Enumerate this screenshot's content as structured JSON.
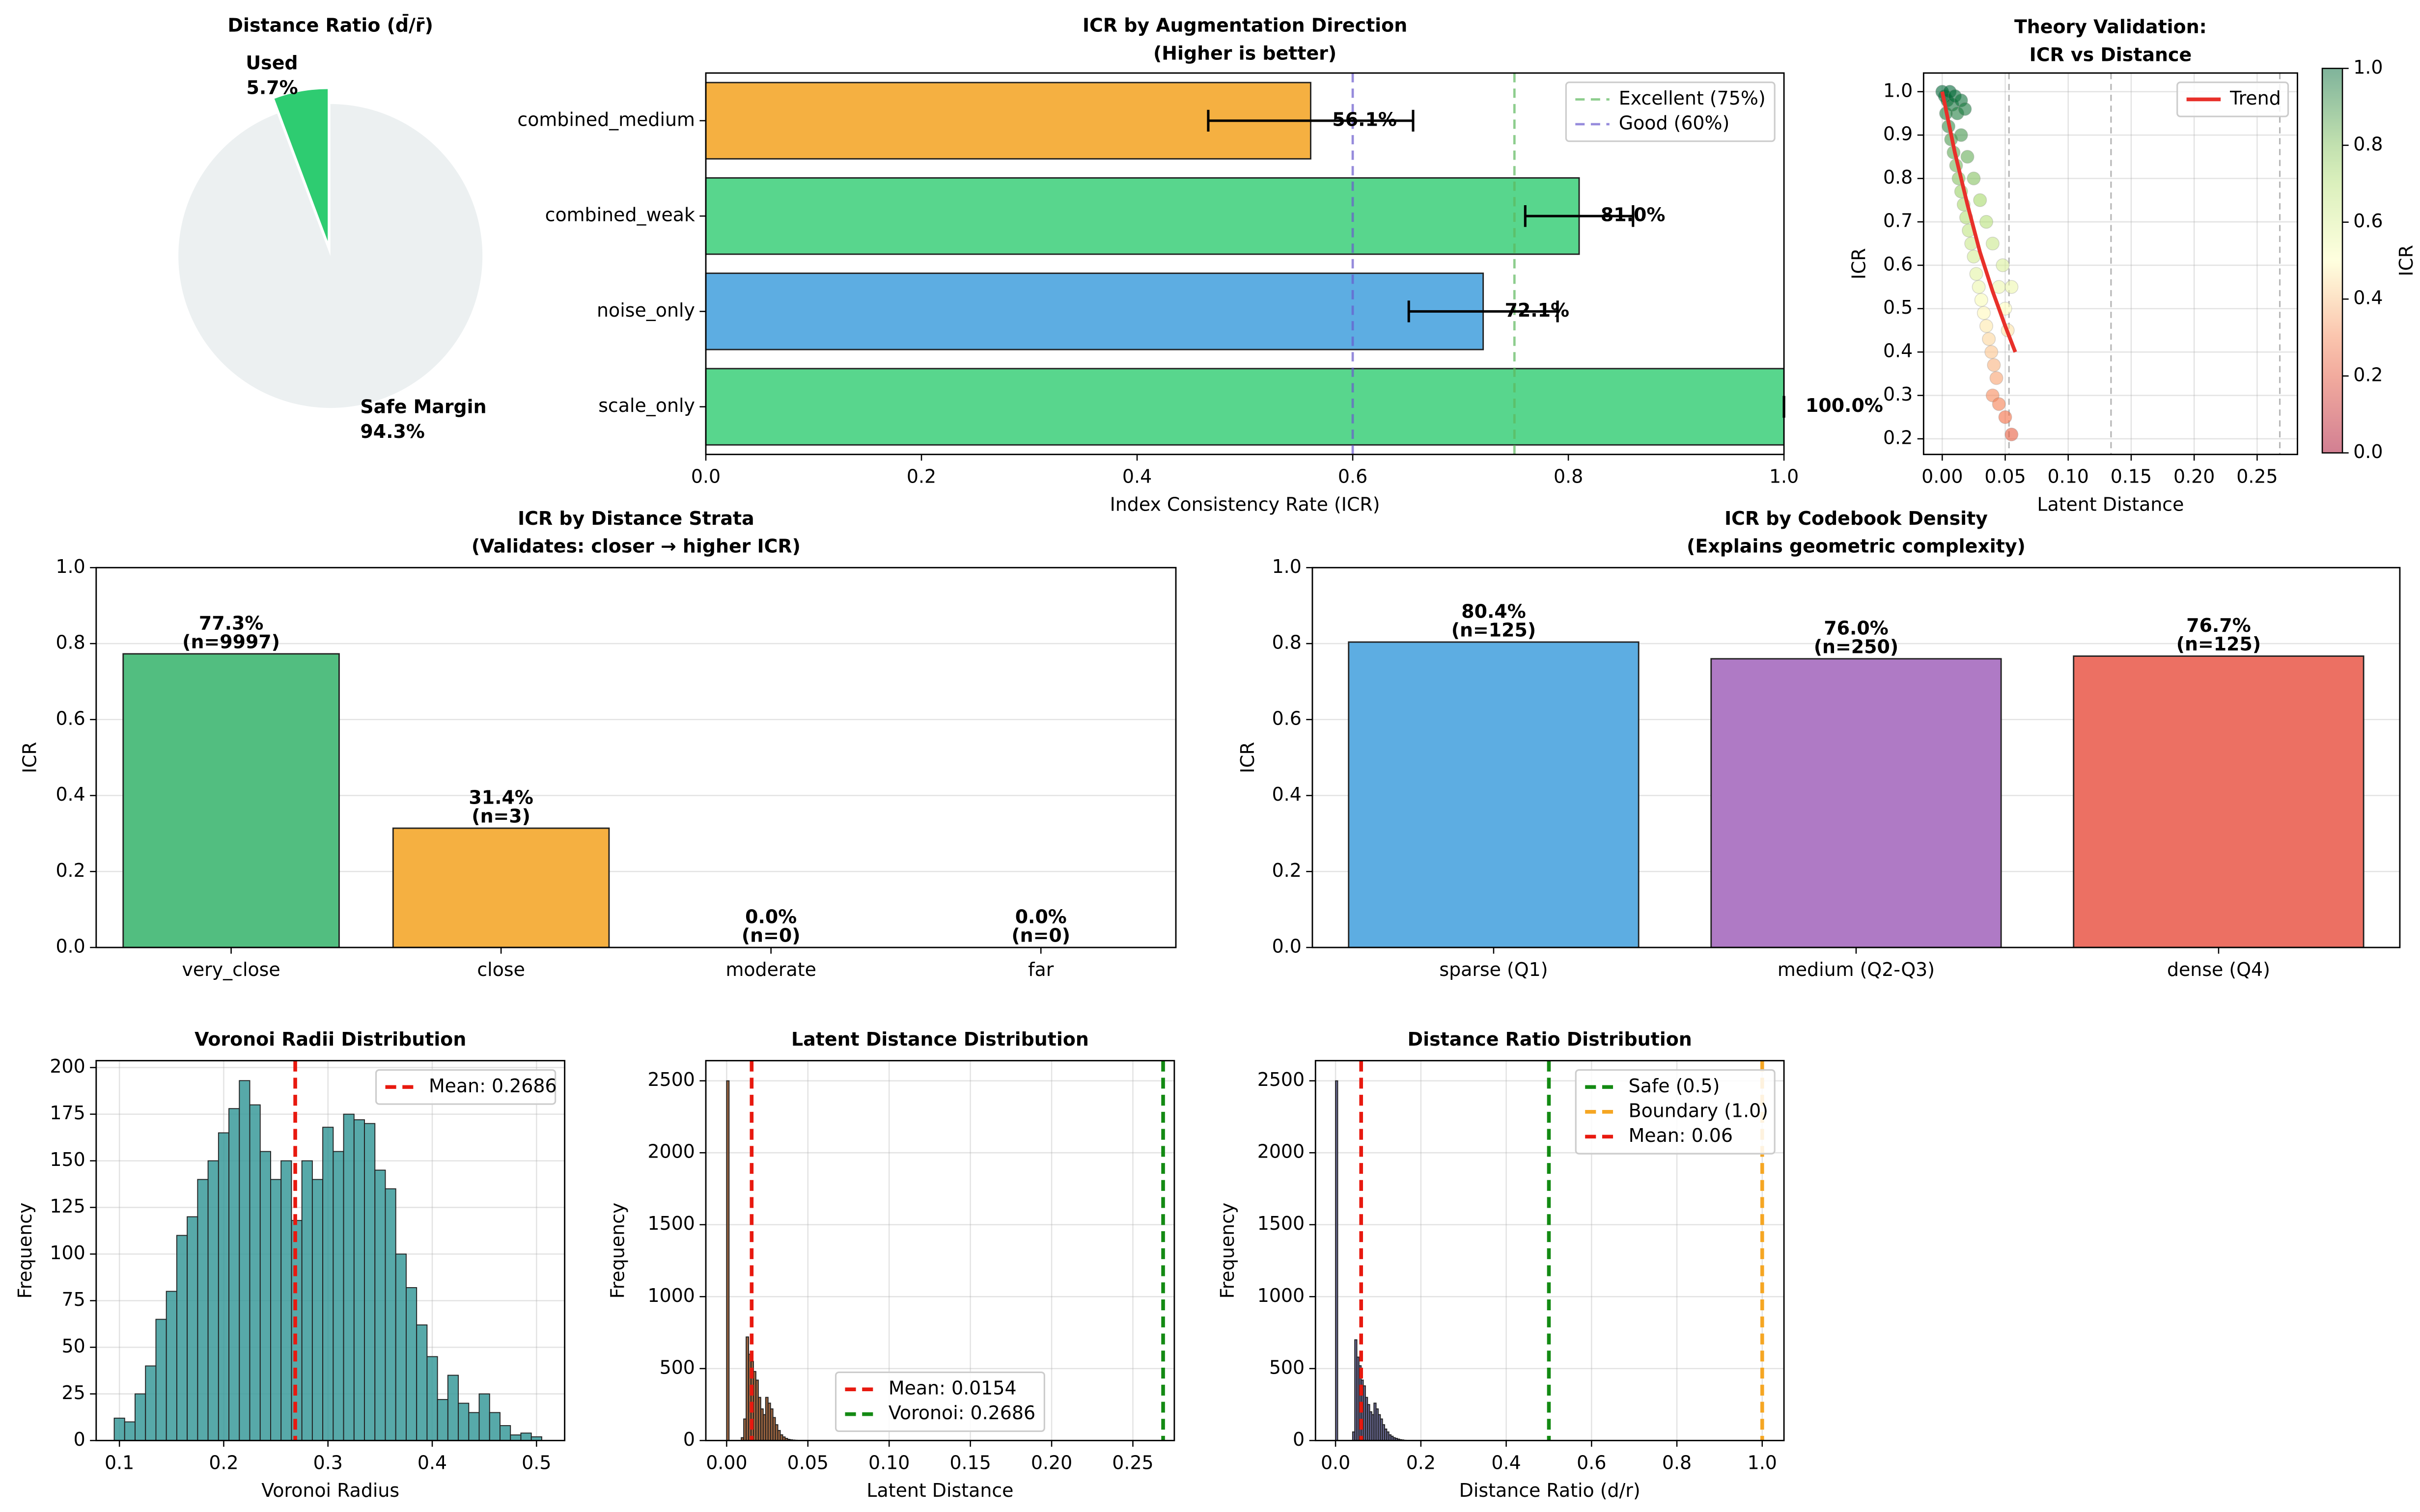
{
  "chart_data": [
    {
      "type": "pie",
      "title": "Distance Ratio (d̄/r̄)",
      "labels": [
        "Used",
        "Safe Margin"
      ],
      "values": [
        5.7,
        94.3
      ],
      "value_labels": [
        "5.7%",
        "94.3%"
      ],
      "colors": [
        "#2ecc71",
        "#ecf0f1"
      ],
      "explode": [
        0.1,
        0
      ],
      "startangle": 90
    },
    {
      "type": "barh",
      "title": "ICR by Augmentation Direction",
      "subtitle": "(Higher is better)",
      "categories": [
        "combined_medium",
        "combined_weak",
        "noise_only",
        "scale_only"
      ],
      "values": [
        0.561,
        0.81,
        0.721,
        1.0
      ],
      "errors": [
        0.095,
        0.05,
        0.069,
        0
      ],
      "value_labels": [
        "56.1%",
        "81.0%",
        "72.1%",
        "100.0%"
      ],
      "colors": [
        "#f5b041",
        "#58d68d",
        "#5dade2",
        "#58d68d"
      ],
      "xlabel": "Index Consistency Rate (ICR)",
      "xlim": [
        0,
        1
      ],
      "xticks": [
        {
          "value": 0,
          "label": "0.0"
        },
        0.2,
        0.4,
        0.6,
        0.8,
        {
          "value": 1,
          "label": "1.0"
        }
      ],
      "reference_lines": [
        {
          "value": 0.75,
          "label": "Excellent (75%)",
          "color": "#5cb85c"
        },
        {
          "value": 0.6,
          "label": "Good (60%)",
          "color": "#6a5acd"
        }
      ],
      "legend": "upper right",
      "grid": false
    },
    {
      "type": "scatter",
      "title": "Theory Validation:",
      "subtitle": "ICR vs Distance",
      "xlabel": "Latent Distance",
      "ylabel": "ICR",
      "xlim": [
        -0.0148,
        0.282
      ],
      "ylim": [
        0.164,
        1.043
      ],
      "xticks": [
        {
          "value": 0,
          "label": "0.00"
        },
        0.05,
        {
          "value": 0.1,
          "label": "0.10"
        },
        0.15,
        {
          "value": 0.2,
          "label": "0.20"
        },
        0.25
      ],
      "yticks": [
        0.2,
        0.3,
        0.4,
        0.5,
        0.6,
        0.7,
        0.8,
        0.9,
        {
          "value": 1,
          "label": "1.0"
        }
      ],
      "grid": true,
      "colormap": "RdYlGn",
      "x": [
        0,
        0.002,
        0.004,
        0.006,
        0.008,
        0.01,
        0.012,
        0.015,
        0.018,
        0.003,
        0.005,
        0.007,
        0.009,
        0.011,
        0.013,
        0.015,
        0.017,
        0.019,
        0.021,
        0.023,
        0.025,
        0.027,
        0.029,
        0.031,
        0.033,
        0.035,
        0.037,
        0.039,
        0.041,
        0.043,
        0.04,
        0.045,
        0.05,
        0.055,
        0.02,
        0.03,
        0.04,
        0.045,
        0.05,
        0.052,
        0.048,
        0.035,
        0.025,
        0.015,
        0.055
      ],
      "y": [
        1.0,
        0.99,
        0.98,
        1.0,
        0.97,
        0.99,
        0.95,
        0.98,
        0.96,
        0.95,
        0.92,
        0.89,
        0.86,
        0.83,
        0.8,
        0.77,
        0.74,
        0.71,
        0.68,
        0.65,
        0.62,
        0.58,
        0.55,
        0.52,
        0.49,
        0.46,
        0.43,
        0.4,
        0.37,
        0.34,
        0.3,
        0.28,
        0.25,
        0.21,
        0.85,
        0.75,
        0.65,
        0.55,
        0.5,
        0.45,
        0.6,
        0.7,
        0.8,
        0.9,
        0.55
      ],
      "trend": {
        "name": "Trend",
        "color": "#e8302a",
        "x": [
          0,
          0.005,
          0.01,
          0.015,
          0.02,
          0.03,
          0.04,
          0.05,
          0.058
        ],
        "y": [
          1.0,
          0.93,
          0.86,
          0.8,
          0.74,
          0.63,
          0.54,
          0.46,
          0.4
        ]
      },
      "vlines": [
        0.053,
        0.134,
        0.268
      ],
      "legend": "upper right",
      "colorbar": {
        "label": "ICR",
        "lim": [
          0,
          1
        ],
        "ticks": [
          {
            "value": 0,
            "label": "0.0"
          },
          0.2,
          0.4,
          0.6,
          0.8,
          {
            "value": 1,
            "label": "1.0"
          }
        ]
      }
    },
    {
      "type": "bar",
      "title": "ICR by Distance Strata",
      "subtitle": "(Validates: closer → higher ICR)",
      "categories": [
        "very_close",
        "close",
        "moderate",
        "far"
      ],
      "values": [
        0.773,
        0.314,
        0,
        0
      ],
      "value_labels": [
        "77.3%",
        "31.4%",
        "0.0%",
        "0.0%"
      ],
      "count_labels": [
        "(n=9997)",
        "(n=3)",
        "(n=0)",
        "(n=0)"
      ],
      "colors": [
        "#52be80",
        "#f5b041",
        "#eb984e",
        "#e74c3c"
      ],
      "ylabel": "ICR",
      "ylim": [
        0,
        1
      ],
      "yticks": [
        {
          "value": 0,
          "label": "0.0"
        },
        0.2,
        0.4,
        0.6,
        0.8,
        {
          "value": 1,
          "label": "1.0"
        }
      ],
      "grid": "y"
    },
    {
      "type": "bar",
      "title": "ICR by Codebook Density",
      "subtitle": "(Explains geometric complexity)",
      "categories": [
        "sparse (Q1)",
        "medium (Q2-Q3)",
        "dense (Q4)"
      ],
      "values": [
        0.804,
        0.76,
        0.767
      ],
      "value_labels": [
        "80.4%",
        "76.0%",
        "76.7%"
      ],
      "count_labels": [
        "(n=125)",
        "(n=250)",
        "(n=125)"
      ],
      "colors": [
        "#5dade2",
        "#af7ac5",
        "#ec7063"
      ],
      "ylabel": "ICR",
      "ylim": [
        0,
        1
      ],
      "yticks": [
        {
          "value": 0,
          "label": "0.0"
        },
        0.2,
        0.4,
        0.6,
        0.8,
        {
          "value": 1,
          "label": "1.0"
        }
      ],
      "grid": "y"
    },
    {
      "type": "histogram",
      "title": "Voronoi Radii Distribution",
      "xlabel": "Voronoi Radius",
      "ylabel": "Frequency",
      "color": "#3a9a9a",
      "xlim": [
        0.0777,
        0.527
      ],
      "ylim": [
        0,
        203.7
      ],
      "xticks": [
        0.1,
        0.2,
        0.3,
        0.4,
        0.5
      ],
      "yticks": [
        0,
        25,
        50,
        75,
        100,
        125,
        150,
        175,
        200
      ],
      "grid": true,
      "bins": [
        0.095,
        0.105,
        0.115,
        0.125,
        0.135,
        0.145,
        0.155,
        0.165,
        0.175,
        0.185,
        0.195,
        0.205,
        0.215,
        0.225,
        0.235,
        0.245,
        0.255,
        0.265,
        0.275,
        0.285,
        0.295,
        0.305,
        0.315,
        0.325,
        0.335,
        0.345,
        0.355,
        0.365,
        0.375,
        0.385,
        0.395,
        0.405,
        0.415,
        0.425,
        0.435,
        0.445,
        0.455,
        0.465,
        0.475,
        0.485,
        0.495,
        0.505
      ],
      "counts": [
        12,
        10,
        25,
        40,
        65,
        80,
        110,
        120,
        140,
        150,
        165,
        178,
        193,
        180,
        155,
        140,
        150,
        118,
        150,
        140,
        168,
        155,
        175,
        172,
        170,
        145,
        135,
        100,
        82,
        62,
        45,
        22,
        35,
        20,
        15,
        25,
        15,
        8,
        3,
        4,
        2
      ],
      "reference_lines": [
        {
          "value": 0.2686,
          "label": "Mean: 0.2686",
          "color": "#e8190f"
        }
      ],
      "legend": "upper right"
    },
    {
      "type": "histogram",
      "title": "Latent Distance Distribution",
      "xlabel": "Latent Distance",
      "ylabel": "Frequency",
      "color": "#8b4a1e",
      "xlim": [
        -0.0128,
        0.2755
      ],
      "ylim": [
        0,
        2640
      ],
      "xticks": [
        {
          "value": 0,
          "label": "0.00"
        },
        0.05,
        {
          "value": 0.1,
          "label": "0.10"
        },
        0.15,
        {
          "value": 0.2,
          "label": "0.20"
        },
        0.25
      ],
      "yticks": [
        0,
        500,
        1000,
        1500,
        2000,
        2500
      ],
      "grid": true,
      "bins": [
        0,
        0.0015,
        0.003,
        0.0045,
        0.006,
        0.0075,
        0.009,
        0.0105,
        0.012,
        0.0135,
        0.015,
        0.0165,
        0.018,
        0.0195,
        0.021,
        0.0225,
        0.024,
        0.0255,
        0.027,
        0.0285,
        0.03,
        0.0315,
        0.033,
        0.0345,
        0.036,
        0.0375,
        0.039,
        0.0405,
        0.042,
        0.0435,
        0.045
      ],
      "counts": [
        2500,
        0,
        0,
        0,
        0,
        0,
        20,
        150,
        720,
        600,
        550,
        480,
        420,
        300,
        220,
        180,
        300,
        260,
        220,
        160,
        110,
        70,
        40,
        25,
        15,
        8,
        5,
        3,
        2,
        1
      ],
      "reference_lines": [
        {
          "value": 0.0154,
          "label": "Mean: 0.0154",
          "color": "#e8190f"
        },
        {
          "value": 0.2686,
          "label": "Voronoi: 0.2686",
          "color": "#138a13"
        }
      ],
      "legend": "lower center"
    },
    {
      "type": "histogram",
      "title": "Distance Ratio Distribution",
      "xlabel": "Distance Ratio (d/r)",
      "ylabel": "Frequency",
      "color": "#4b4b7b",
      "xlim": [
        -0.047,
        1.051
      ],
      "ylim": [
        0,
        2640
      ],
      "xticks": [
        {
          "value": 0,
          "label": "0.0"
        },
        0.2,
        0.4,
        0.6,
        0.8,
        {
          "value": 1,
          "label": "1.0"
        }
      ],
      "yticks": [
        0,
        500,
        1000,
        1500,
        2000,
        2500
      ],
      "grid": true,
      "bins": [
        0,
        0.005,
        0.01,
        0.015,
        0.02,
        0.025,
        0.03,
        0.035,
        0.04,
        0.045,
        0.05,
        0.055,
        0.06,
        0.065,
        0.07,
        0.075,
        0.08,
        0.085,
        0.09,
        0.095,
        0.1,
        0.105,
        0.11,
        0.115,
        0.12,
        0.125,
        0.13,
        0.135,
        0.14,
        0.145,
        0.15,
        0.155,
        0.16,
        0.165,
        0.17
      ],
      "counts": [
        2500,
        0,
        0,
        0,
        0,
        0,
        0,
        0,
        60,
        700,
        580,
        520,
        420,
        380,
        300,
        250,
        200,
        180,
        260,
        220,
        180,
        150,
        110,
        80,
        60,
        40,
        30,
        20,
        15,
        10,
        6,
        4,
        2,
        1
      ],
      "reference_lines": [
        {
          "value": 0.5,
          "label": "Safe (0.5)",
          "color": "#138a13"
        },
        {
          "value": 1.0,
          "label": "Boundary (1.0)",
          "color": "#f5a623"
        },
        {
          "value": 0.06,
          "label": "Mean: 0.06",
          "color": "#e8190f"
        }
      ],
      "legend": "upper right"
    }
  ]
}
